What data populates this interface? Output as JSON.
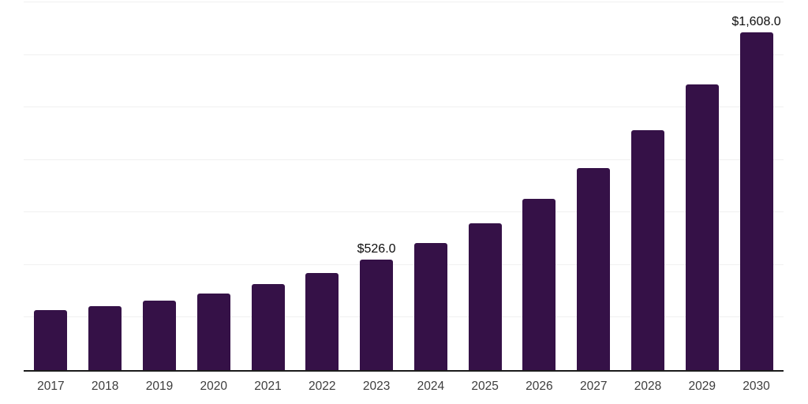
{
  "chart_theme": {
    "background": "#ffffff",
    "bar_color": "#351147",
    "gridline_color": "#f0f0f0",
    "axis_line_color": "#1c1c1c",
    "tick_label_color": "#3d3d3d",
    "value_label_color": "#0d0d0d"
  },
  "chart_data": {
    "type": "bar",
    "title": "",
    "xlabel": "",
    "ylabel": "",
    "categories": [
      "2017",
      "2018",
      "2019",
      "2020",
      "2021",
      "2022",
      "2023",
      "2024",
      "2025",
      "2026",
      "2027",
      "2028",
      "2029",
      "2030"
    ],
    "values": [
      287,
      304,
      330,
      366,
      411,
      463,
      526,
      606,
      700,
      816,
      962,
      1142,
      1360,
      1608
    ],
    "data_labels": [
      null,
      null,
      null,
      null,
      null,
      null,
      "$526.0",
      null,
      null,
      null,
      null,
      null,
      null,
      "$1,608.0"
    ],
    "ylim": [
      0,
      1750
    ],
    "gridline_step": 250,
    "grid": true,
    "legend": false,
    "y_axis_tick_labels_visible": false
  }
}
